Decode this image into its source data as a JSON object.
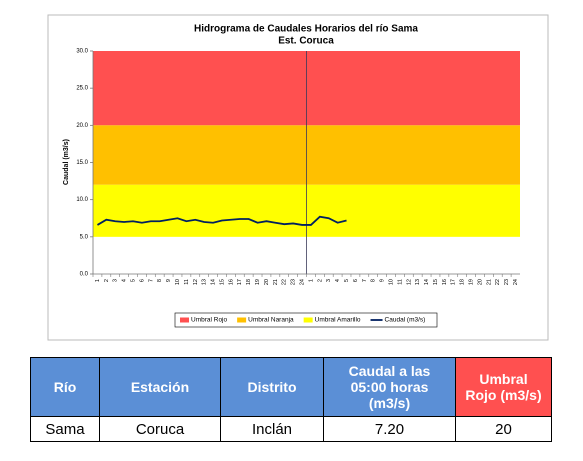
{
  "chart_data": {
    "type": "line",
    "title": "Hidrograma de Caudales Horarios del río Sama",
    "subtitle": "Est. Coruca",
    "y_label": "Caudal (m3/s)",
    "categories": [
      "1",
      "2",
      "3",
      "4",
      "5",
      "6",
      "7",
      "8",
      "9",
      "10",
      "11",
      "12",
      "13",
      "14",
      "15",
      "16",
      "17",
      "18",
      "19",
      "20",
      "21",
      "22",
      "23",
      "24",
      "1",
      "2",
      "3",
      "4",
      "5",
      "6",
      "7",
      "8",
      "9",
      "10",
      "11",
      "12",
      "13",
      "14",
      "15",
      "16",
      "17",
      "18",
      "19",
      "20",
      "21",
      "22",
      "23",
      "24"
    ],
    "bands": [
      {
        "name": "Umbral Rojo",
        "color": "#ff5050",
        "range": [
          20,
          30
        ]
      },
      {
        "name": "Umbral Naranja",
        "color": "#ffc000",
        "range": [
          12,
          20
        ]
      },
      {
        "name": "Umbral Amarillo",
        "color": "#ffff00",
        "range": [
          5,
          12
        ]
      }
    ],
    "series": [
      {
        "name": "Caudal (m3/s)",
        "color": "#002060",
        "values": [
          6.6,
          7.3,
          7.1,
          7.0,
          7.1,
          6.9,
          7.1,
          7.1,
          7.3,
          7.5,
          7.1,
          7.3,
          7.0,
          6.9,
          7.2,
          7.3,
          7.4,
          7.4,
          6.9,
          7.1,
          6.9,
          6.7,
          6.8,
          6.6,
          6.6,
          7.7,
          7.5,
          6.9,
          7.2,
          null,
          null,
          null,
          null,
          null,
          null,
          null,
          null,
          null,
          null,
          null,
          null,
          null,
          null,
          null,
          null,
          null,
          null,
          null
        ]
      }
    ],
    "ylim": [
      0,
      30
    ],
    "yticks": [
      {
        "value": 0,
        "label": "0.0"
      },
      {
        "value": 5,
        "label": "5.0"
      },
      {
        "value": 10,
        "label": "10.0"
      },
      {
        "value": 15,
        "label": "15.0"
      },
      {
        "value": 20,
        "label": "20.0"
      },
      {
        "value": 25,
        "label": "25.0"
      },
      {
        "value": 30,
        "label": "30.0"
      }
    ],
    "legend": "bottom"
  },
  "table": {
    "header": [
      "Río",
      "Estación",
      "Distrito",
      "Caudal a las 05:00 horas (m3/s)",
      "Umbral  Rojo (m3/s)"
    ],
    "rows": [
      [
        "Sama",
        "Coruca",
        "Inclán",
        "7.20",
        "20"
      ]
    ]
  }
}
